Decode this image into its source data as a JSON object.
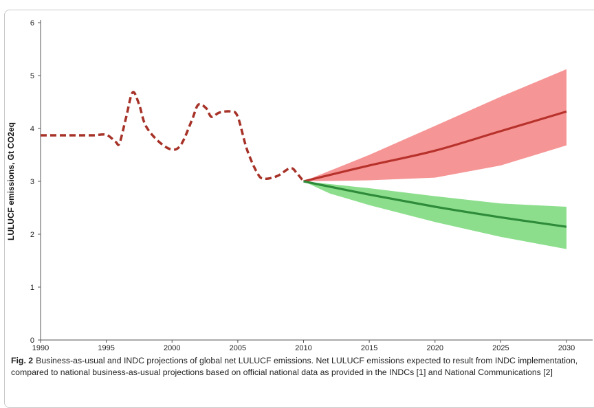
{
  "chart_data": {
    "type": "line",
    "title": "",
    "xlabel": "",
    "ylabel": "LULUCF emissions, Gt CO2eq",
    "xlim": [
      1990,
      2030
    ],
    "ylim": [
      0,
      6
    ],
    "x_ticks": [
      "1990",
      "1995",
      "2000",
      "2005",
      "2010",
      "2015",
      "2020",
      "2025",
      "2030"
    ],
    "y_ticks": [
      "0",
      "1",
      "2",
      "3",
      "4",
      "5",
      "6"
    ],
    "grid": false,
    "series": [
      {
        "name": "",
        "style": "dashed",
        "color": "#a63228",
        "points": [
          [
            1990,
            3.87
          ],
          [
            1991,
            3.87
          ],
          [
            1992,
            3.87
          ],
          [
            1993,
            3.87
          ],
          [
            1994,
            3.87
          ],
          [
            1995,
            3.88
          ],
          [
            1995.7,
            3.75
          ],
          [
            1996,
            3.72
          ],
          [
            1996.5,
            4.2
          ],
          [
            1997,
            4.68
          ],
          [
            1997.5,
            4.45
          ],
          [
            1998,
            4.05
          ],
          [
            1999,
            3.75
          ],
          [
            2000,
            3.6
          ],
          [
            2000.7,
            3.7
          ],
          [
            2001.5,
            4.15
          ],
          [
            2002,
            4.45
          ],
          [
            2002.6,
            4.38
          ],
          [
            2003,
            4.22
          ],
          [
            2003.6,
            4.3
          ],
          [
            2004.5,
            4.32
          ],
          [
            2005,
            4.22
          ],
          [
            2005.7,
            3.6
          ],
          [
            2006.5,
            3.15
          ],
          [
            2007,
            3.05
          ],
          [
            2008,
            3.1
          ],
          [
            2009,
            3.25
          ],
          [
            2009.5,
            3.15
          ],
          [
            2010,
            3.0
          ]
        ]
      },
      {
        "name": "",
        "style": "solid",
        "color": "#b8322c",
        "points": [
          [
            2010,
            3.0
          ],
          [
            2015,
            3.3
          ],
          [
            2020,
            3.58
          ],
          [
            2025,
            3.95
          ],
          [
            2030,
            4.32
          ]
        ],
        "band": {
          "color": "#f58f8f",
          "upper": [
            [
              2010,
              3.0
            ],
            [
              2015,
              3.5
            ],
            [
              2020,
              4.05
            ],
            [
              2025,
              4.6
            ],
            [
              2030,
              5.12
            ]
          ],
          "lower": [
            [
              2010,
              3.0
            ],
            [
              2015,
              3.02
            ],
            [
              2020,
              3.07
            ],
            [
              2025,
              3.3
            ],
            [
              2030,
              3.68
            ]
          ]
        }
      },
      {
        "name": "",
        "style": "solid",
        "color": "#2e8b3a",
        "points": [
          [
            2010,
            3.0
          ],
          [
            2015,
            2.75
          ],
          [
            2020,
            2.52
          ],
          [
            2025,
            2.32
          ],
          [
            2030,
            2.14
          ]
        ],
        "band": {
          "color": "#86dc86",
          "upper": [
            [
              2010,
              3.0
            ],
            [
              2015,
              2.87
            ],
            [
              2020,
              2.72
            ],
            [
              2025,
              2.58
            ],
            [
              2030,
              2.52
            ]
          ],
          "lower": [
            [
              2010,
              3.0
            ],
            [
              2012,
              2.77
            ],
            [
              2015,
              2.55
            ],
            [
              2020,
              2.23
            ],
            [
              2025,
              1.95
            ],
            [
              2030,
              1.72
            ]
          ]
        }
      }
    ]
  },
  "caption": {
    "label": "Fig. 2",
    "text": "Business-as-usual and INDC projections of global net LULUCF emissions. Net LULUCF emissions expected to result from INDC implementation, compared to national business-as-usual projections based on official national data as provided in the INDCs [1] and National Communications [2]"
  }
}
